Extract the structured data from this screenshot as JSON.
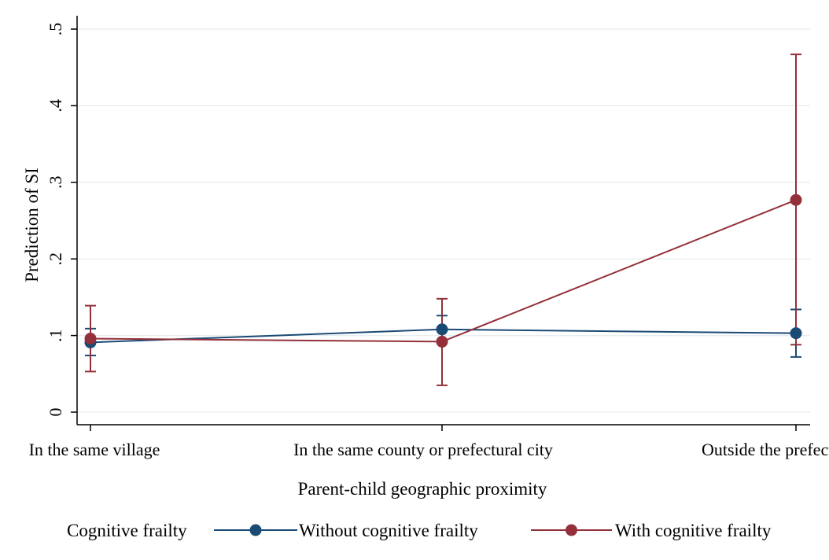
{
  "chart_data": {
    "type": "line",
    "title": "",
    "xlabel": "Parent-child geographic proximity",
    "ylabel": "Prediction of SI",
    "categories": [
      "In the same village",
      "In the same county or prefectural city",
      "Outside the prefectural city"
    ],
    "y_ticks": [
      0,
      0.1,
      0.2,
      0.3,
      0.4,
      0.5
    ],
    "y_tick_labels": [
      "0",
      ".1",
      ".2",
      ".3",
      ".4",
      ".5"
    ],
    "ylim": [
      0,
      0.5
    ],
    "grid": true,
    "legend_position": "bottom",
    "legend_title": "Cognitive frailty",
    "series": [
      {
        "name": "Without cognitive frailty",
        "color": "#1b4a74",
        "values": [
          0.091,
          0.108,
          0.103
        ],
        "ci_lower": [
          0.074,
          0.09,
          0.072
        ],
        "ci_upper": [
          0.109,
          0.126,
          0.134
        ]
      },
      {
        "name": "With cognitive frailty",
        "color": "#93303a",
        "values": [
          0.096,
          0.092,
          0.277
        ],
        "ci_lower": [
          0.053,
          0.035,
          0.088
        ],
        "ci_upper": [
          0.139,
          0.148,
          0.467
        ]
      }
    ]
  }
}
